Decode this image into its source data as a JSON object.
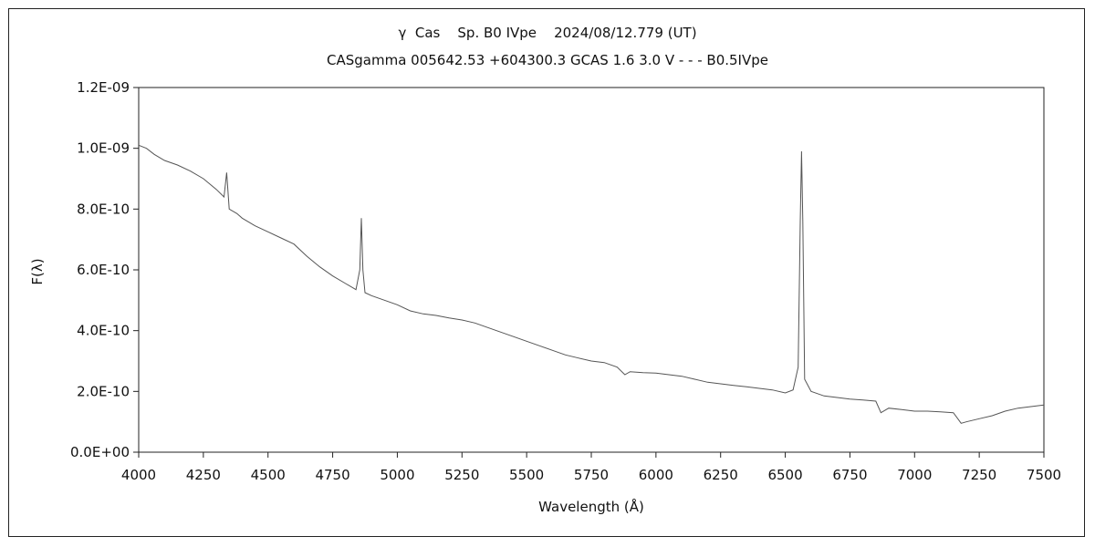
{
  "chart_data": {
    "type": "line",
    "title": "γ  Cas    Sp. B0 IVpe    2024/08/12.779 (UT)",
    "subtitle": "CASgamma 005642.53 +604300.3 GCAS 1.6 3.0 V - - - B0.5IVpe",
    "xlabel": "Wavelength (Å)",
    "ylabel": "F(λ)",
    "xlim": [
      4000,
      7500
    ],
    "ylim": [
      0,
      1.2e-09
    ],
    "xticks": [
      4000,
      4250,
      4500,
      4750,
      5000,
      5250,
      5500,
      5750,
      6000,
      6250,
      6500,
      6750,
      7000,
      7250,
      7500
    ],
    "xtick_labels": [
      "4000",
      "4250",
      "4500",
      "4750",
      "5000",
      "5250",
      "5500",
      "5750",
      "6000",
      "6250",
      "6500",
      "6750",
      "7000",
      "7250",
      "7500"
    ],
    "yticks": [
      0,
      2e-10,
      4e-10,
      6e-10,
      8e-10,
      1e-09,
      1.2e-09
    ],
    "ytick_labels": [
      "0.0E+00",
      "2.0E-10",
      "4.0E-10",
      "6.0E-10",
      "8.0E-10",
      "1.0E-09",
      "1.2E-09"
    ],
    "grid": false,
    "legend": "none",
    "line_color": "#555555",
    "series": [
      {
        "x": [
          4000,
          4030,
          4060,
          4100,
          4150,
          4200,
          4250,
          4300,
          4330,
          4340,
          4350,
          4380,
          4400,
          4450,
          4500,
          4550,
          4600,
          4650,
          4700,
          4750,
          4800,
          4840,
          4855,
          4861,
          4867,
          4875,
          4900,
          4950,
          5000,
          5050,
          5100,
          5150,
          5200,
          5250,
          5300,
          5350,
          5400,
          5450,
          5500,
          5550,
          5600,
          5650,
          5700,
          5750,
          5800,
          5850,
          5880,
          5900,
          5950,
          6000,
          6050,
          6100,
          6150,
          6200,
          6250,
          6300,
          6350,
          6400,
          6450,
          6500,
          6530,
          6550,
          6558,
          6563,
          6568,
          6575,
          6600,
          6650,
          6700,
          6750,
          6800,
          6850,
          6870,
          6900,
          6950,
          7000,
          7050,
          7100,
          7150,
          7180,
          7200,
          7250,
          7300,
          7350,
          7400,
          7450,
          7500
        ],
        "y": [
          1.01e-09,
          1e-09,
          9.8e-10,
          9.6e-10,
          9.45e-10,
          9.25e-10,
          9e-10,
          8.65e-10,
          8.4e-10,
          9.2e-10,
          8e-10,
          7.85e-10,
          7.7e-10,
          7.45e-10,
          7.25e-10,
          7.05e-10,
          6.85e-10,
          6.45e-10,
          6.1e-10,
          5.8e-10,
          5.55e-10,
          5.35e-10,
          6e-10,
          7.7e-10,
          6e-10,
          5.25e-10,
          5.15e-10,
          5e-10,
          4.85e-10,
          4.65e-10,
          4.55e-10,
          4.5e-10,
          4.42e-10,
          4.35e-10,
          4.25e-10,
          4.1e-10,
          3.95e-10,
          3.8e-10,
          3.65e-10,
          3.5e-10,
          3.35e-10,
          3.2e-10,
          3.1e-10,
          3e-10,
          2.95e-10,
          2.8e-10,
          2.55e-10,
          2.65e-10,
          2.62e-10,
          2.6e-10,
          2.55e-10,
          2.5e-10,
          2.4e-10,
          2.3e-10,
          2.25e-10,
          2.2e-10,
          2.15e-10,
          2.1e-10,
          2.05e-10,
          1.95e-10,
          2.05e-10,
          2.8e-10,
          7.6e-10,
          9.9e-10,
          7.6e-10,
          2.4e-10,
          2e-10,
          1.85e-10,
          1.8e-10,
          1.75e-10,
          1.72e-10,
          1.68e-10,
          1.3e-10,
          1.45e-10,
          1.4e-10,
          1.35e-10,
          1.35e-10,
          1.33e-10,
          1.3e-10,
          9.5e-11,
          1e-10,
          1.1e-10,
          1.2e-10,
          1.35e-10,
          1.45e-10,
          1.5e-10,
          1.55e-10
        ]
      }
    ]
  }
}
